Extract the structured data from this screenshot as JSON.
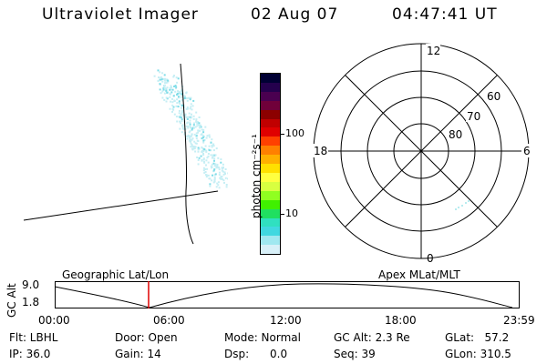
{
  "header": {
    "title": "Ultraviolet Imager",
    "date": "02 Aug 07",
    "time": "04:47:41  UT"
  },
  "colorbar": {
    "unit_label": "photon cm⁻²s⁻¹",
    "ticks": [
      "100",
      "10"
    ],
    "colors": [
      "#000033",
      "#24004d",
      "#4a0050",
      "#70003a",
      "#8c0000",
      "#c00000",
      "#e00000",
      "#ff4000",
      "#ff8000",
      "#ffb000",
      "#ffe000",
      "#ffff40",
      "#d8ff40",
      "#90ff20",
      "#40f000",
      "#20e060",
      "#30e0c0",
      "#40d8e0",
      "#a0e8f0",
      "#d8f0f8"
    ]
  },
  "polar": {
    "mlt_labels": {
      "top": "12",
      "left": "18",
      "right": "6",
      "bottom": "0"
    },
    "lat_labels": [
      "60",
      "70",
      "80"
    ]
  },
  "timeline": {
    "left_label": "Geographic Lat/Lon",
    "right_label": "Apex  MLat/MLT",
    "axis_title": "GC Alt",
    "y_ticks": [
      "9.0",
      "1.8"
    ],
    "x_ticks": [
      "00:00",
      "06:00",
      "12:00",
      "18:00",
      "23:59"
    ]
  },
  "info": {
    "flt": "Flt: LBHL",
    "ip": "IP: 36.0",
    "door": "Door: Open",
    "gain": "Gain: 14",
    "mode": "Mode: Normal",
    "dsp": "Dsp:      0.0",
    "gcalt": "GC Alt: 2.3 Re",
    "seq": "Seq: 39",
    "glat": "GLat:   57.2",
    "glon": "GLon: 310.5"
  }
}
